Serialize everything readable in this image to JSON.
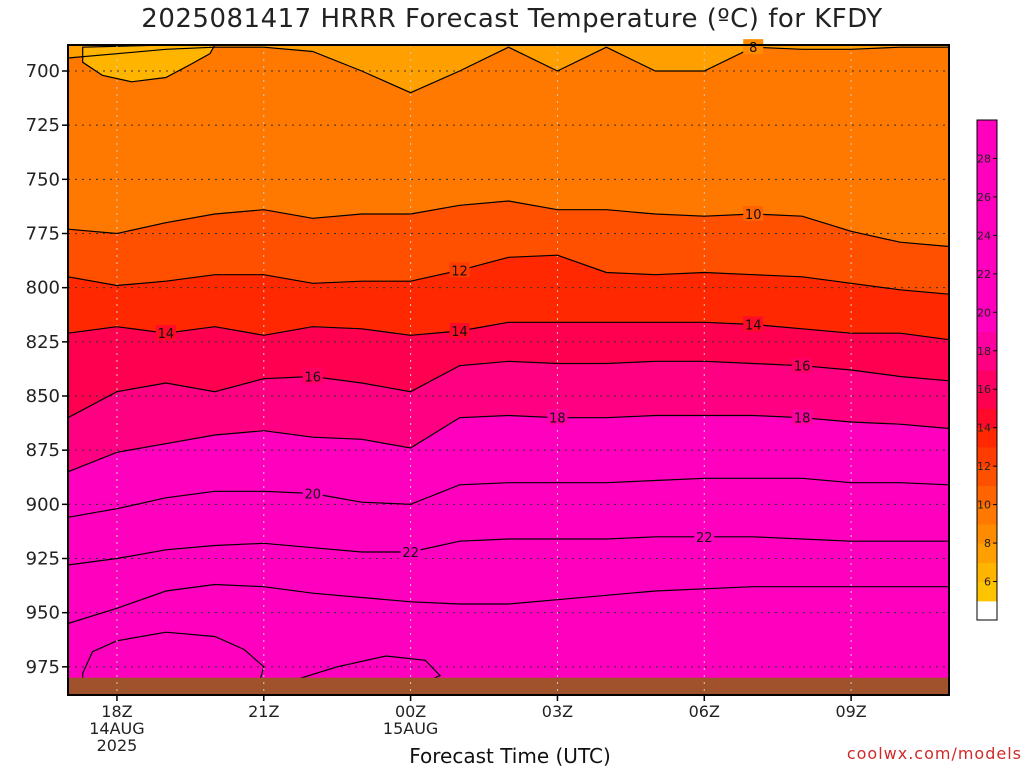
{
  "title": "2025081417 HRRR Forecast Temperature (ºC) for KFDY",
  "credit": "coolwx.com/models",
  "chart_data": {
    "type": "contour",
    "title": "2025081417 HRRR Forecast Temperature (ºC) for KFDY",
    "xlabel": "Forecast Time (UTC)",
    "ylabel": "",
    "x_hours": [
      0,
      3,
      6,
      9,
      12,
      15,
      18
    ],
    "x_tick_labels": [
      {
        "hour": 1,
        "lines": [
          "18Z",
          "14AUG",
          "2025"
        ]
      },
      {
        "hour": 4,
        "lines": [
          "21Z"
        ]
      },
      {
        "hour": 7,
        "lines": [
          "00Z",
          "15AUG"
        ]
      },
      {
        "hour": 10,
        "lines": [
          "03Z"
        ]
      },
      {
        "hour": 13,
        "lines": [
          "06Z"
        ]
      },
      {
        "hour": 16,
        "lines": [
          "09Z"
        ]
      }
    ],
    "xlim": [
      0,
      18
    ],
    "y_tick_labels": [
      "700",
      "725",
      "750",
      "775",
      "800",
      "825",
      "850",
      "875",
      "900",
      "925",
      "950",
      "975"
    ],
    "y_ticks": [
      700,
      725,
      750,
      775,
      800,
      825,
      850,
      875,
      900,
      925,
      950,
      975
    ],
    "ylim": [
      688,
      988
    ],
    "y_direction": "pressure increases downward",
    "grid": true,
    "surface_pressure_hpa": 980,
    "isotherms": [
      {
        "value": 8,
        "hpa": [
          694,
          692,
          690,
          689,
          689,
          691,
          700,
          710,
          700,
          689,
          700,
          689,
          700,
          700,
          689,
          690,
          690,
          689,
          689
        ],
        "labels": [
          {
            "hour": 14.0
          }
        ]
      },
      {
        "value": 10,
        "hpa": [
          773,
          775,
          770,
          766,
          764,
          768,
          766,
          766,
          762,
          760,
          764,
          764,
          766,
          767,
          766,
          767,
          774,
          779,
          781
        ],
        "labels": [
          {
            "hour": 14.0
          }
        ]
      },
      {
        "value": 12,
        "hpa": [
          795,
          799,
          797,
          794,
          794,
          798,
          797,
          797,
          792,
          786,
          785,
          793,
          794,
          793,
          794,
          795,
          798,
          801,
          803
        ],
        "labels": [
          {
            "hour": 8.0
          }
        ]
      },
      {
        "value": 14,
        "hpa": [
          821,
          818,
          821,
          818,
          822,
          818,
          819,
          822,
          820,
          816,
          816,
          816,
          816,
          816,
          817,
          819,
          821,
          821,
          824
        ],
        "labels": [
          {
            "hour": 2.0
          },
          {
            "hour": 8.0
          },
          {
            "hour": 14.0
          }
        ]
      },
      {
        "value": 16,
        "hpa": [
          860,
          848,
          844,
          848,
          842,
          841,
          844,
          848,
          836,
          834,
          835,
          835,
          834,
          834,
          835,
          836,
          838,
          841,
          843
        ],
        "labels": [
          {
            "hour": 5.0
          },
          {
            "hour": 15.0
          }
        ]
      },
      {
        "value": 18,
        "hpa": [
          885,
          876,
          872,
          868,
          866,
          869,
          870,
          874,
          860,
          859,
          860,
          860,
          859,
          859,
          859,
          860,
          862,
          863,
          865
        ],
        "labels": [
          {
            "hour": 10.0
          },
          {
            "hour": 15.0
          }
        ]
      },
      {
        "value": 20,
        "hpa": [
          906,
          902,
          897,
          894,
          894,
          895,
          899,
          900,
          891,
          890,
          890,
          890,
          889,
          888,
          888,
          888,
          890,
          890,
          891
        ],
        "labels": [
          {
            "hour": 5.0
          }
        ]
      },
      {
        "value": 22,
        "hpa": [
          928,
          925,
          921,
          919,
          918,
          920,
          922,
          922,
          917,
          916,
          916,
          916,
          915,
          915,
          915,
          916,
          917,
          917,
          917
        ],
        "labels": [
          {
            "hour": 7.0
          },
          {
            "hour": 13.0
          }
        ]
      },
      {
        "value": 24,
        "hpa": [
          955,
          948,
          940,
          937,
          938,
          941,
          943,
          945,
          946,
          946,
          944,
          942,
          940,
          939,
          938,
          938,
          938,
          938,
          938
        ],
        "labels": []
      }
    ],
    "colorbar": {
      "ticks": [
        6,
        8,
        10,
        12,
        14,
        16,
        18,
        20,
        22,
        24,
        26,
        28
      ],
      "range": [
        4,
        30
      ],
      "colors": [
        "#ffdd00",
        "#ffc400",
        "#ffb400",
        "#ffa000",
        "#ff8c00",
        "#ff7800",
        "#ff6400",
        "#ff5000",
        "#ff3c00",
        "#ff2800",
        "#ff0a28",
        "#ff0050",
        "#ff0064",
        "#ff0082",
        "#ff00a0",
        "#ff00be"
      ]
    },
    "surface_color": "#a0522d"
  }
}
